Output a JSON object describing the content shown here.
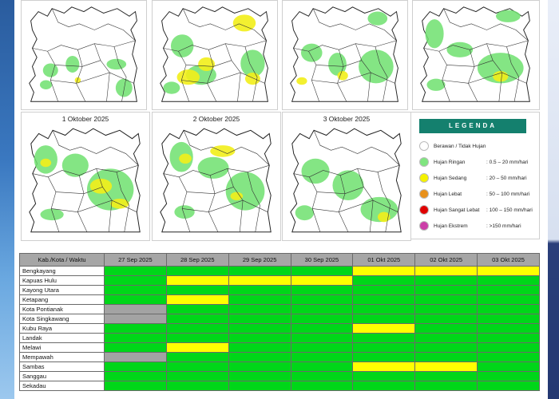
{
  "maps": [
    {
      "title": "",
      "rain": [
        [
          "g",
          24,
          78,
          20,
          18
        ],
        [
          "g",
          54,
          68,
          18,
          22
        ],
        [
          "g",
          108,
          72,
          26,
          14
        ],
        [
          "g",
          120,
          98,
          22,
          24
        ],
        [
          "g",
          20,
          100,
          16,
          12
        ],
        [
          "y",
          66,
          96,
          8,
          8
        ]
      ]
    },
    {
      "title": "",
      "rain": [
        [
          "g",
          20,
          40,
          30,
          30
        ],
        [
          "g",
          40,
          80,
          40,
          26
        ],
        [
          "y",
          28,
          86,
          30,
          20
        ],
        [
          "y",
          56,
          70,
          22,
          18
        ],
        [
          "y",
          102,
          14,
          30,
          22
        ],
        [
          "g",
          112,
          60,
          32,
          36
        ],
        [
          "y",
          118,
          90,
          20,
          16
        ],
        [
          "g",
          10,
          102,
          22,
          16
        ]
      ]
    },
    {
      "title": "",
      "rain": [
        [
          "g",
          20,
          52,
          28,
          24
        ],
        [
          "g",
          56,
          64,
          24,
          30
        ],
        [
          "g",
          96,
          60,
          46,
          44
        ],
        [
          "g",
          108,
          10,
          26,
          18
        ],
        [
          "y",
          14,
          96,
          14,
          10
        ],
        [
          "y",
          68,
          88,
          14,
          12
        ]
      ]
    },
    {
      "title": "",
      "rain": [
        [
          "g",
          12,
          20,
          24,
          38
        ],
        [
          "g",
          40,
          50,
          34,
          20
        ],
        [
          "g",
          80,
          64,
          60,
          40
        ],
        [
          "y",
          100,
          88,
          20,
          14
        ],
        [
          "g",
          104,
          8,
          32,
          16
        ],
        [
          "g",
          14,
          98,
          24,
          16
        ]
      ]
    },
    {
      "title": "1 Oktober 2025",
      "rain": [
        [
          "g",
          12,
          24,
          30,
          34
        ],
        [
          "g",
          48,
          34,
          34,
          28
        ],
        [
          "g",
          80,
          52,
          60,
          50
        ],
        [
          "y",
          84,
          64,
          28,
          18
        ],
        [
          "y",
          20,
          40,
          14,
          10
        ],
        [
          "y",
          110,
          88,
          24,
          12
        ],
        [
          "g",
          20,
          100,
          30,
          14
        ]
      ]
    },
    {
      "title": "2 Oktober 2025",
      "rain": [
        [
          "g",
          18,
          20,
          30,
          36
        ],
        [
          "g",
          54,
          38,
          40,
          26
        ],
        [
          "g",
          90,
          56,
          50,
          46
        ],
        [
          "y",
          70,
          24,
          32,
          14
        ],
        [
          "y",
          30,
          34,
          16,
          12
        ],
        [
          "y",
          96,
          80,
          16,
          10
        ],
        [
          "g",
          24,
          96,
          26,
          16
        ]
      ]
    },
    {
      "title": "3 Oktober 2025",
      "rain": [
        [
          "g",
          20,
          40,
          36,
          30
        ],
        [
          "g",
          60,
          54,
          40,
          36
        ],
        [
          "g",
          96,
          86,
          48,
          30
        ],
        [
          "y",
          118,
          104,
          16,
          12
        ],
        [
          "g",
          12,
          96,
          24,
          18
        ]
      ]
    }
  ],
  "legend": {
    "title": "LEGENDA",
    "items": [
      {
        "name": "Berawan / Tidak Hujan",
        "range": "",
        "color": "#ffffff"
      },
      {
        "name": "Hujan Ringan",
        "range": ": 0.5 – 20 mm/hari",
        "color": "#7fe57f"
      },
      {
        "name": "Hujan Sedang",
        "range": ": 20 – 50 mm/hari",
        "color": "#f5f200"
      },
      {
        "name": "Hujan Lebat",
        "range": ": 50 – 100 mm/hari",
        "color": "#e8901a"
      },
      {
        "name": "Hujan Sangat Lebat",
        "range": ": 100 – 150 mm/hari",
        "color": "#e00000"
      },
      {
        "name": "Hujan Ekstrem",
        "range": ": >150 mm/hari",
        "color": "#cc3fa8"
      }
    ]
  },
  "table": {
    "corner": "Kab./Kota / Waktu",
    "dates": [
      "27 Sep 2025",
      "28 Sep 2025",
      "29 Sep 2025",
      "30 Sep 2025",
      "01 Okt 2025",
      "02 Okt 2025",
      "03 Okt 2025"
    ],
    "rows": [
      {
        "name": "Bengkayang",
        "cells": [
          "green",
          "green",
          "green",
          "green",
          "yellow",
          "yellow",
          "yellow"
        ]
      },
      {
        "name": "Kapuas Hulu",
        "cells": [
          "green",
          "yellow",
          "yellow",
          "yellow",
          "green",
          "green",
          "green"
        ]
      },
      {
        "name": "Kayong Utara",
        "cells": [
          "green",
          "green",
          "green",
          "green",
          "green",
          "green",
          "green"
        ]
      },
      {
        "name": "Ketapang",
        "cells": [
          "green",
          "yellow",
          "green",
          "green",
          "green",
          "green",
          "green"
        ]
      },
      {
        "name": "Kota Pontianak",
        "cells": [
          "grey",
          "green",
          "green",
          "green",
          "green",
          "green",
          "green"
        ]
      },
      {
        "name": "Kota Singkawang",
        "cells": [
          "grey",
          "green",
          "green",
          "green",
          "green",
          "green",
          "green"
        ]
      },
      {
        "name": "Kubu Raya",
        "cells": [
          "green",
          "green",
          "green",
          "green",
          "yellow",
          "green",
          "green"
        ]
      },
      {
        "name": "Landak",
        "cells": [
          "green",
          "green",
          "green",
          "green",
          "green",
          "green",
          "green"
        ]
      },
      {
        "name": "Melawi",
        "cells": [
          "green",
          "yellow",
          "green",
          "green",
          "green",
          "green",
          "green"
        ]
      },
      {
        "name": "Mempawah",
        "cells": [
          "grey",
          "green",
          "green",
          "green",
          "green",
          "green",
          "green"
        ]
      },
      {
        "name": "Sambas",
        "cells": [
          "green",
          "green",
          "green",
          "green",
          "yellow",
          "yellow",
          "green"
        ]
      },
      {
        "name": "Sanggau",
        "cells": [
          "green",
          "green",
          "green",
          "green",
          "green",
          "green",
          "green"
        ]
      },
      {
        "name": "Sekadau",
        "cells": [
          "green",
          "green",
          "green",
          "green",
          "green",
          "green",
          "green"
        ]
      }
    ]
  }
}
